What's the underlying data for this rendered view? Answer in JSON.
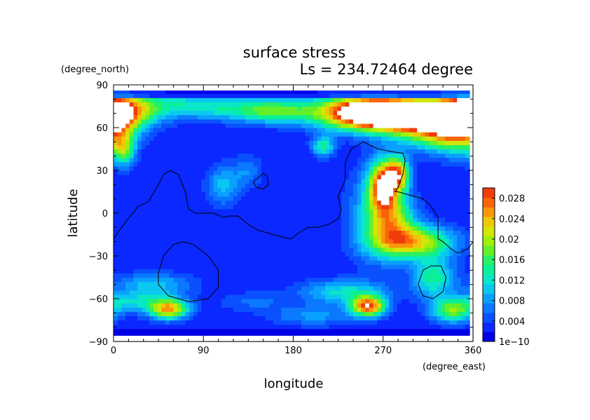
{
  "chart_data": {
    "type": "heatmap",
    "title": "surface stress",
    "subtitle": "Ls = 234.72464 degree",
    "xlabel": "longitude",
    "ylabel": "latitude",
    "x_unit": "(degree_east)",
    "y_unit": "(degree_north)",
    "xlim": [
      0,
      360
    ],
    "ylim": [
      -90,
      90
    ],
    "x_ticks": [
      0,
      90,
      180,
      270,
      360
    ],
    "y_ticks": [
      -90,
      -60,
      -30,
      0,
      30,
      60,
      90
    ],
    "x_tick_labels": [
      "0",
      "90",
      "180",
      "270",
      "360"
    ],
    "y_tick_labels": [
      "−90",
      "−60",
      "−30",
      "0",
      "30",
      "60",
      "90"
    ],
    "colorbar": {
      "min": 0,
      "max": 0.03,
      "tick_values": [
        0,
        0.004,
        0.008,
        0.012,
        0.016,
        0.02,
        0.024,
        0.028
      ],
      "tick_labels": [
        "1e−10",
        "0.004",
        "0.008",
        "0.012",
        "0.016",
        "0.02",
        "0.024",
        "0.028"
      ],
      "colors": [
        "#0000e6",
        "#0a28ff",
        "#0a50ff",
        "#0a78ff",
        "#0aa0ff",
        "#0ac8f0",
        "#0ae6c8",
        "#0af096",
        "#28f064",
        "#64f028",
        "#a0f00a",
        "#d2e60a",
        "#f0c80a",
        "#fa960a",
        "#fa640a",
        "#f03c0a"
      ]
    },
    "field": {
      "background": 0.002,
      "saturation_max": 0.03,
      "saturation_color": "#ffffff",
      "features": [
        {
          "lon": 105,
          "lat": 73,
          "w_lon": 40,
          "w_lat": 6,
          "amp": 0.008
        },
        {
          "lon": 160,
          "lat": 72,
          "w_lon": 25,
          "w_lat": 6,
          "amp": 0.012
        },
        {
          "lon": 10,
          "lat": 72,
          "w_lon": 25,
          "w_lat": 8,
          "amp": 0.016
        },
        {
          "lon": 60,
          "lat": 78,
          "w_lon": 40,
          "w_lat": 5,
          "amp": 0.006
        },
        {
          "lon": 255,
          "lat": 72,
          "w_lon": 40,
          "w_lat": 8,
          "amp": 0.026
        },
        {
          "lon": 295,
          "lat": 68,
          "w_lon": 45,
          "w_lat": 8,
          "amp": 0.03
        },
        {
          "lon": 350,
          "lat": 65,
          "w_lon": 20,
          "w_lat": 14,
          "amp": 0.024
        },
        {
          "lon": 320,
          "lat": 55,
          "w_lon": 25,
          "w_lat": 8,
          "amp": 0.012
        },
        {
          "lon": 10,
          "lat": 45,
          "w_lon": 8,
          "w_lat": 8,
          "amp": 0.014
        },
        {
          "lon": 210,
          "lat": 47,
          "w_lon": 8,
          "w_lat": 5,
          "amp": 0.012
        },
        {
          "lon": 110,
          "lat": 20,
          "w_lon": 12,
          "w_lat": 10,
          "amp": 0.008
        },
        {
          "lon": 135,
          "lat": 30,
          "w_lon": 10,
          "w_lat": 8,
          "amp": 0.005
        },
        {
          "lon": 270,
          "lat": 20,
          "w_lon": 10,
          "w_lat": 12,
          "amp": 0.024
        },
        {
          "lon": 285,
          "lat": 28,
          "w_lon": 8,
          "w_lat": 8,
          "amp": 0.02
        },
        {
          "lon": 265,
          "lat": 0,
          "w_lon": 20,
          "w_lat": 22,
          "amp": 0.01
        },
        {
          "lon": 300,
          "lat": -20,
          "w_lon": 28,
          "w_lat": 8,
          "amp": 0.02
        },
        {
          "lon": 280,
          "lat": -5,
          "w_lon": 15,
          "w_lat": 12,
          "amp": 0.012
        },
        {
          "lon": 40,
          "lat": -50,
          "w_lon": 28,
          "w_lat": 6,
          "amp": 0.008
        },
        {
          "lon": 20,
          "lat": -62,
          "w_lon": 25,
          "w_lat": 5,
          "amp": 0.008
        },
        {
          "lon": 55,
          "lat": -67,
          "w_lon": 14,
          "w_lat": 5,
          "amp": 0.022
        },
        {
          "lon": 230,
          "lat": -55,
          "w_lon": 30,
          "w_lat": 6,
          "amp": 0.01
        },
        {
          "lon": 255,
          "lat": -65,
          "w_lon": 12,
          "w_lat": 5,
          "amp": 0.026
        },
        {
          "lon": 320,
          "lat": -45,
          "w_lon": 15,
          "w_lat": 10,
          "amp": 0.012
        },
        {
          "lon": 340,
          "lat": -68,
          "w_lon": 15,
          "w_lat": 6,
          "amp": 0.016
        },
        {
          "lon": 200,
          "lat": -72,
          "w_lon": 30,
          "w_lat": 5,
          "amp": 0.006
        },
        {
          "lon": 140,
          "lat": -62,
          "w_lon": 25,
          "w_lat": 5,
          "amp": 0.004
        }
      ]
    },
    "contour_lines": [
      [
        [
          0,
          -18
        ],
        [
          10,
          -8
        ],
        [
          25,
          5
        ],
        [
          35,
          8
        ],
        [
          45,
          20
        ],
        [
          50,
          27
        ],
        [
          57,
          30
        ],
        [
          65,
          27
        ],
        [
          72,
          15
        ],
        [
          75,
          3
        ],
        [
          82,
          0
        ],
        [
          100,
          0
        ],
        [
          110,
          -3
        ],
        [
          115,
          -2
        ],
        [
          125,
          -2
        ],
        [
          135,
          -8
        ],
        [
          145,
          -12
        ],
        [
          155,
          -14
        ],
        [
          170,
          -17
        ],
        [
          178,
          -18
        ],
        [
          185,
          -14
        ],
        [
          195,
          -10
        ],
        [
          205,
          -10
        ],
        [
          215,
          -8
        ],
        [
          225,
          -4
        ],
        [
          228,
          2
        ],
        [
          225,
          12
        ],
        [
          232,
          23
        ],
        [
          232,
          35
        ],
        [
          238,
          45
        ],
        [
          250,
          50
        ],
        [
          265,
          45
        ],
        [
          280,
          43
        ],
        [
          290,
          42
        ],
        [
          292,
          37
        ],
        [
          290,
          28
        ],
        [
          285,
          18
        ],
        [
          282,
          15
        ],
        [
          285,
          15
        ],
        [
          300,
          12
        ],
        [
          310,
          10
        ],
        [
          318,
          5
        ],
        [
          325,
          -3
        ],
        [
          325,
          -18
        ],
        [
          330,
          -20
        ],
        [
          338,
          -25
        ],
        [
          345,
          -28
        ],
        [
          355,
          -25
        ],
        [
          360,
          -20
        ]
      ],
      [
        [
          140,
          22
        ],
        [
          145,
          25
        ],
        [
          150,
          28
        ],
        [
          154,
          26
        ],
        [
          155,
          20
        ],
        [
          150,
          17
        ],
        [
          143,
          18
        ],
        [
          140,
          22
        ]
      ],
      [
        [
          45,
          -42
        ],
        [
          50,
          -30
        ],
        [
          60,
          -22
        ],
        [
          70,
          -20
        ],
        [
          80,
          -22
        ],
        [
          95,
          -30
        ],
        [
          105,
          -40
        ],
        [
          105,
          -52
        ],
        [
          95,
          -60
        ],
        [
          75,
          -62
        ],
        [
          55,
          -58
        ],
        [
          45,
          -50
        ],
        [
          45,
          -42
        ]
      ],
      [
        [
          305,
          -50
        ],
        [
          310,
          -40
        ],
        [
          318,
          -37
        ],
        [
          328,
          -37
        ],
        [
          333,
          -45
        ],
        [
          330,
          -55
        ],
        [
          320,
          -60
        ],
        [
          310,
          -58
        ],
        [
          305,
          -50
        ]
      ]
    ]
  }
}
